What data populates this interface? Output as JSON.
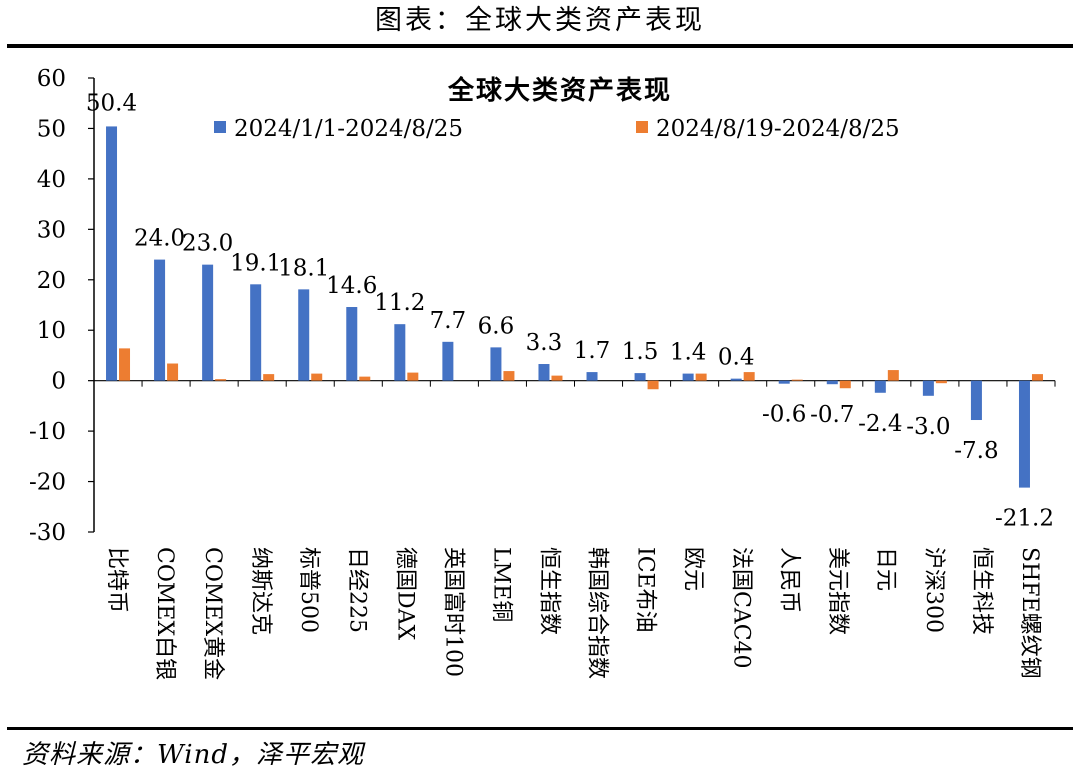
{
  "header": {
    "title": "图表：全球大类资产表现"
  },
  "footer": {
    "source": "资料来源：Wind，泽平宏观"
  },
  "colors": {
    "series1": "#4472C4",
    "series2": "#ED7D31"
  },
  "chart_data": {
    "type": "bar",
    "title": "全球大类资产表现",
    "xlabel": "",
    "ylabel": "",
    "ylim": [
      -30,
      60
    ],
    "yticks": [
      60,
      50,
      40,
      30,
      20,
      10,
      0,
      -10,
      -20,
      -30
    ],
    "legend_position": "top",
    "grid": false,
    "categories": [
      "比特币",
      "COMEX白银",
      "COMEX黄金",
      "纳斯达克",
      "标普500",
      "日经225",
      "德国DAX",
      "英国富时100",
      "LME铜",
      "恒生指数",
      "韩国综合指数",
      "ICE布油",
      "欧元",
      "法国CAC40",
      "人民币",
      "美元指数",
      "日元",
      "沪深300",
      "恒生科技",
      "SHFE螺纹钢"
    ],
    "series": [
      {
        "name": "2024/1/1-2024/8/25",
        "values": [
          50.4,
          24.0,
          23.0,
          19.1,
          18.1,
          14.6,
          11.2,
          7.7,
          6.6,
          3.3,
          1.7,
          1.5,
          1.4,
          0.4,
          -0.6,
          -0.7,
          -2.4,
          -3.0,
          -7.8,
          -21.2
        ]
      },
      {
        "name": "2024/8/19-2024/8/25",
        "values": [
          6.4,
          3.4,
          0.3,
          1.3,
          1.4,
          0.8,
          1.6,
          0.0,
          1.9,
          1.0,
          0.0,
          -1.7,
          1.4,
          1.7,
          0.2,
          -1.5,
          2.1,
          -0.5,
          0.0,
          1.3
        ]
      }
    ],
    "data_labels": [
      "50.4",
      "24.0",
      "23.0",
      "19.1",
      "18.1",
      "14.6",
      "11.2",
      "7.7",
      "6.6",
      "3.3",
      "1.7",
      "1.5",
      "1.4",
      "0.4",
      "-0.6",
      "-0.7",
      "-2.4",
      "-3.0",
      "-7.8",
      "-21.2"
    ]
  }
}
